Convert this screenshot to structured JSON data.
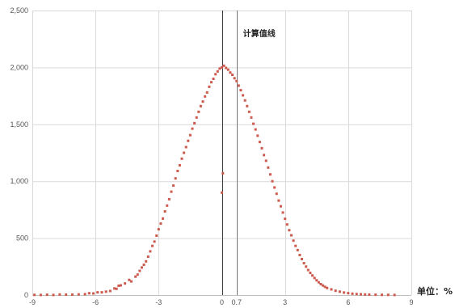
{
  "chart_data": {
    "type": "scatter",
    "title": "",
    "xlabel": "",
    "ylabel": "",
    "unit_label": "单位：%",
    "annotation": "计算值线",
    "xlim": [
      -9,
      9
    ],
    "ylim": [
      0,
      2500
    ],
    "x_ticks": [
      -9,
      -6,
      -3,
      0,
      0.7,
      3,
      6,
      9
    ],
    "x_tick_labels": [
      "-9",
      "-6",
      "-3",
      "0",
      "0.7",
      "3",
      "6",
      "9"
    ],
    "y_ticks": [
      0,
      500,
      1000,
      1500,
      2000,
      2500
    ],
    "y_tick_labels": [
      "0",
      "500",
      "1,000",
      "1,500",
      "2,000",
      "2,500"
    ],
    "grid_x": [
      -9,
      -6,
      -3,
      3,
      6,
      9
    ],
    "grid_y": [
      0,
      500,
      1000,
      1500,
      2000,
      2500
    ],
    "reference_lines": [
      {
        "x": 0,
        "color": "#333333"
      },
      {
        "x": 0.7,
        "color": "#777777",
        "label": "计算值线"
      }
    ],
    "marker_color": "#cd5a4e",
    "series": [
      {
        "points": [
          [
            -8.9,
            2
          ],
          [
            -8.6,
            1
          ],
          [
            -8.3,
            3
          ],
          [
            -8.0,
            1
          ],
          [
            -7.7,
            5
          ],
          [
            -7.4,
            4
          ],
          [
            -7.1,
            4
          ],
          [
            -6.8,
            6
          ],
          [
            -6.5,
            8
          ],
          [
            -6.3,
            16
          ],
          [
            -6.1,
            14
          ],
          [
            -5.9,
            24
          ],
          [
            -5.7,
            24
          ],
          [
            -5.5,
            30
          ],
          [
            -5.3,
            36
          ],
          [
            -5.1,
            58
          ],
          [
            -5.0,
            55
          ],
          [
            -4.9,
            82
          ],
          [
            -4.8,
            85
          ],
          [
            -4.6,
            102
          ],
          [
            -4.4,
            133
          ],
          [
            -4.3,
            120
          ],
          [
            -4.1,
            162
          ],
          [
            -4.0,
            180
          ],
          [
            -3.9,
            213
          ],
          [
            -3.8,
            242
          ],
          [
            -3.7,
            266
          ],
          [
            -3.6,
            296
          ],
          [
            -3.5,
            337
          ],
          [
            -3.4,
            384
          ],
          [
            -3.3,
            432
          ],
          [
            -3.2,
            470
          ],
          [
            -3.1,
            522
          ],
          [
            -3.0,
            578
          ],
          [
            -2.9,
            628
          ],
          [
            -2.8,
            672
          ],
          [
            -2.7,
            735
          ],
          [
            -2.6,
            786
          ],
          [
            -2.5,
            842
          ],
          [
            -2.4,
            908
          ],
          [
            -2.3,
            962
          ],
          [
            -2.2,
            1025
          ],
          [
            -2.1,
            1090
          ],
          [
            -2.0,
            1140
          ],
          [
            -1.9,
            1198
          ],
          [
            -1.8,
            1250
          ],
          [
            -1.7,
            1300
          ],
          [
            -1.6,
            1355
          ],
          [
            -1.5,
            1405
          ],
          [
            -1.4,
            1462
          ],
          [
            -1.3,
            1510
          ],
          [
            -1.2,
            1560
          ],
          [
            -1.1,
            1610
          ],
          [
            -1.0,
            1660
          ],
          [
            -0.9,
            1700
          ],
          [
            -0.8,
            1745
          ],
          [
            -0.7,
            1780
          ],
          [
            -0.6,
            1830
          ],
          [
            -0.5,
            1870
          ],
          [
            -0.4,
            1900
          ],
          [
            -0.3,
            1940
          ],
          [
            -0.2,
            1965
          ],
          [
            -0.1,
            1990
          ],
          [
            0.0,
            2000
          ],
          [
            0.05,
            1070
          ],
          [
            0.0,
            900
          ],
          [
            0.1,
            2015
          ],
          [
            0.2,
            1995
          ],
          [
            0.3,
            1980
          ],
          [
            0.4,
            1955
          ],
          [
            0.5,
            1935
          ],
          [
            0.6,
            1905
          ],
          [
            0.7,
            1880
          ],
          [
            0.8,
            1840
          ],
          [
            0.9,
            1800
          ],
          [
            1.0,
            1755
          ],
          [
            1.1,
            1710
          ],
          [
            1.2,
            1660
          ],
          [
            1.3,
            1610
          ],
          [
            1.4,
            1560
          ],
          [
            1.5,
            1505
          ],
          [
            1.6,
            1455
          ],
          [
            1.7,
            1400
          ],
          [
            1.8,
            1345
          ],
          [
            1.9,
            1290
          ],
          [
            2.0,
            1230
          ],
          [
            2.1,
            1180
          ],
          [
            2.2,
            1120
          ],
          [
            2.3,
            1060
          ],
          [
            2.4,
            1000
          ],
          [
            2.5,
            945
          ],
          [
            2.6,
            890
          ],
          [
            2.7,
            830
          ],
          [
            2.8,
            780
          ],
          [
            2.9,
            725
          ],
          [
            3.0,
            670
          ],
          [
            3.1,
            620
          ],
          [
            3.2,
            570
          ],
          [
            3.3,
            525
          ],
          [
            3.4,
            478
          ],
          [
            3.5,
            432
          ],
          [
            3.6,
            395
          ],
          [
            3.7,
            352
          ],
          [
            3.8,
            316
          ],
          [
            3.9,
            280
          ],
          [
            4.0,
            250
          ],
          [
            4.1,
            220
          ],
          [
            4.2,
            195
          ],
          [
            4.3,
            172
          ],
          [
            4.4,
            150
          ],
          [
            4.5,
            130
          ],
          [
            4.6,
            112
          ],
          [
            4.7,
            96
          ],
          [
            4.8,
            84
          ],
          [
            4.9,
            72
          ],
          [
            5.0,
            62
          ],
          [
            5.2,
            50
          ],
          [
            5.4,
            38
          ],
          [
            5.6,
            30
          ],
          [
            5.8,
            22
          ],
          [
            6.0,
            17
          ],
          [
            6.2,
            12
          ],
          [
            6.4,
            9
          ],
          [
            6.6,
            7
          ],
          [
            6.8,
            5
          ],
          [
            7.0,
            4
          ],
          [
            7.3,
            3
          ],
          [
            7.6,
            2
          ],
          [
            7.9,
            2
          ],
          [
            8.2,
            1
          ]
        ]
      }
    ]
  }
}
